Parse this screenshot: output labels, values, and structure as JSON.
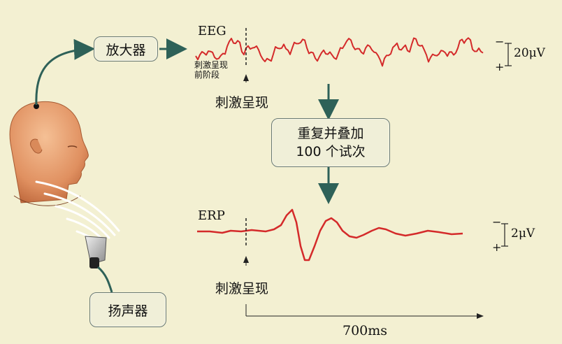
{
  "amplifier_label": "放大器",
  "speaker_label": "扬声器",
  "eeg": {
    "title": "EEG",
    "pre_stimulus_label_line1": "刺激呈现",
    "pre_stimulus_label_line2": "前阶段",
    "stimulus_label": "刺激呈现",
    "scale": "20μV",
    "minus": "−",
    "plus": "+"
  },
  "process_box": {
    "line1": "重复并叠加",
    "line2": "100 个试次"
  },
  "erp": {
    "title": "ERP",
    "stimulus_label": "刺激呈现",
    "scale": "2μV",
    "minus": "−",
    "plus": "+"
  },
  "time_label": "700ms",
  "colors": {
    "signal": "#d42a2a",
    "arrow": "#2e6158",
    "background": "#f3f0d2",
    "skin": "#e8a070"
  }
}
